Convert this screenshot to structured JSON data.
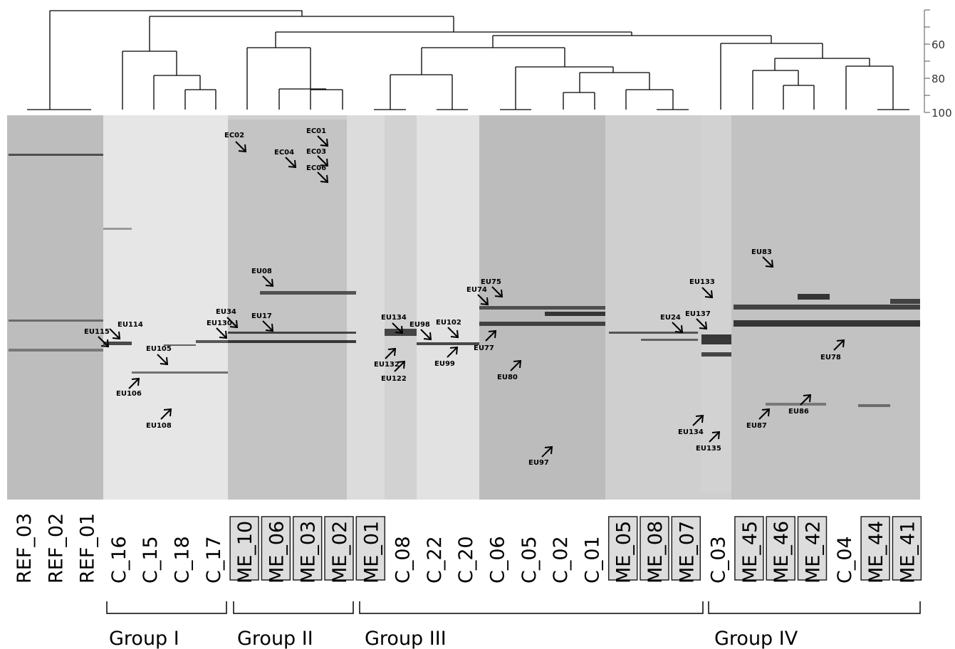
{
  "similarity_scale": {
    "ylim": [
      40,
      100
    ],
    "yticks": [
      60,
      80,
      100
    ]
  },
  "lanes": [
    {
      "label": "REF_03",
      "boxed": false
    },
    {
      "label": "REF_02",
      "boxed": false
    },
    {
      "label": "REF_01",
      "boxed": false
    },
    {
      "label": "C_16",
      "boxed": false
    },
    {
      "label": "C_15",
      "boxed": false
    },
    {
      "label": "C_18",
      "boxed": false
    },
    {
      "label": "C_17",
      "boxed": false
    },
    {
      "label": "ME_10",
      "boxed": true
    },
    {
      "label": "ME_06",
      "boxed": true
    },
    {
      "label": "ME_03",
      "boxed": true
    },
    {
      "label": "ME_02",
      "boxed": true
    },
    {
      "label": "ME_01",
      "boxed": true
    },
    {
      "label": "C_08",
      "boxed": false
    },
    {
      "label": "C_22",
      "boxed": false
    },
    {
      "label": "C_20",
      "boxed": false
    },
    {
      "label": "C_06",
      "boxed": false
    },
    {
      "label": "C_05",
      "boxed": false
    },
    {
      "label": "C_02",
      "boxed": false
    },
    {
      "label": "C_01",
      "boxed": false
    },
    {
      "label": "ME_05",
      "boxed": true
    },
    {
      "label": "ME_08",
      "boxed": true
    },
    {
      "label": "ME_07",
      "boxed": true
    },
    {
      "label": "C_03",
      "boxed": false
    },
    {
      "label": "ME_45",
      "boxed": true
    },
    {
      "label": "ME_46",
      "boxed": true
    },
    {
      "label": "ME_42",
      "boxed": true
    },
    {
      "label": "C_04",
      "boxed": false
    },
    {
      "label": "ME_44",
      "boxed": true
    },
    {
      "label": "ME_41",
      "boxed": true
    }
  ],
  "groups": [
    "Group I",
    "Group II",
    "Group III",
    "Group IV"
  ],
  "band_labels": [
    "EC02",
    "EC01",
    "EC04",
    "EC03",
    "EC06",
    "EU114",
    "EU115",
    "EU105",
    "EU106",
    "EU108",
    "EU08",
    "EU34",
    "EU130",
    "EU17",
    "EU134",
    "EU98",
    "EU102",
    "EU132",
    "EU122",
    "EU99",
    "EU74",
    "EU75",
    "EU77",
    "EU80",
    "EU97",
    "EU24",
    "EU133",
    "EU137",
    "EU134",
    "EU135",
    "EU83",
    "EU87",
    "EU86",
    "EU78"
  ]
}
